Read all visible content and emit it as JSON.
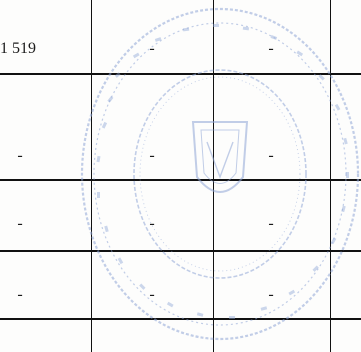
{
  "table": {
    "rows": [
      [
        "1 519",
        "-",
        "-",
        ""
      ],
      [
        "",
        "",
        "",
        ""
      ],
      [
        "-",
        "-",
        "-",
        ""
      ],
      [
        "-",
        "-",
        "-",
        ""
      ],
      [
        "-",
        "-",
        "-",
        ""
      ]
    ]
  },
  "stamp": {
    "ink_color": "#8fa6d6",
    "icon": "round-seal-icon"
  }
}
